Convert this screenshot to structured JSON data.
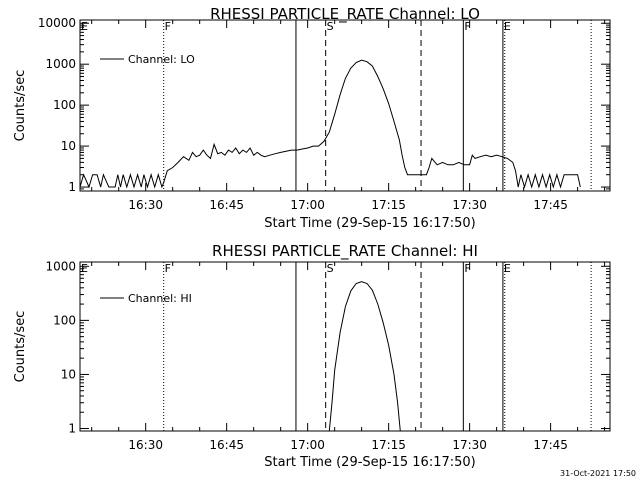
{
  "footer_timestamp": "31-Oct-2021 17:50",
  "chart_data": [
    {
      "type": "line",
      "title": "RHESSI PARTICLE_RATE Channel: LO",
      "xlabel": "Start Time (29-Sep-15 16:17:50)",
      "ylabel": "Counts/sec",
      "yscale": "log",
      "xlim": [
        "16:17:50",
        "17:56:00"
      ],
      "ylim": [
        0.8,
        12000
      ],
      "x_ticks": [
        "16:30",
        "16:45",
        "17:00",
        "17:15",
        "17:30",
        "17:45"
      ],
      "y_ticks": [
        "1",
        "10",
        "100",
        "1000",
        "10000"
      ],
      "legend": "upper-left",
      "grid": false,
      "markers": [
        {
          "time": "16:17:50",
          "style": "dotted",
          "label": "E"
        },
        {
          "time": "16:33:20",
          "style": "dotted",
          "label": "F"
        },
        {
          "time": "16:57:50",
          "style": "solid",
          "label": ""
        },
        {
          "time": "17:03:20",
          "style": "dashed",
          "label": "S"
        },
        {
          "time": "17:21:00",
          "style": "dashed",
          "label": ""
        },
        {
          "time": "17:28:50",
          "style": "solid",
          "label": "F"
        },
        {
          "time": "17:36:10",
          "style": "solid",
          "label": "E"
        },
        {
          "time": "17:36:30",
          "style": "dotted",
          "label": ""
        },
        {
          "time": "17:52:30",
          "style": "dotted",
          "label": ""
        }
      ],
      "series": [
        {
          "name": "Channel: LO",
          "points": [
            [
              "16:17:50",
              1
            ],
            [
              "16:18:30",
              2
            ],
            [
              "16:19:30",
              1
            ],
            [
              "16:20:10",
              2
            ],
            [
              "16:21:00",
              2
            ],
            [
              "16:21:40",
              1
            ],
            [
              "16:22:10",
              2
            ],
            [
              "16:23:10",
              1
            ],
            [
              "16:24:20",
              1
            ],
            [
              "16:24:50",
              2
            ],
            [
              "16:25:20",
              1
            ],
            [
              "16:25:50",
              2
            ],
            [
              "16:26:30",
              1
            ],
            [
              "16:27:10",
              2
            ],
            [
              "16:27:50",
              1
            ],
            [
              "16:28:30",
              2
            ],
            [
              "16:29:10",
              1
            ],
            [
              "16:29:40",
              2
            ],
            [
              "16:30:20",
              1
            ],
            [
              "16:31:00",
              2
            ],
            [
              "16:31:40",
              1
            ],
            [
              "16:32:20",
              2
            ],
            [
              "16:33:00",
              1
            ],
            [
              "16:33:20",
              1.3
            ],
            [
              "16:34:00",
              2.5
            ],
            [
              "16:35:00",
              3
            ],
            [
              "16:36:00",
              4
            ],
            [
              "16:37:00",
              5.5
            ],
            [
              "16:38:00",
              4.5
            ],
            [
              "16:38:40",
              7
            ],
            [
              "16:39:20",
              5.5
            ],
            [
              "16:40:00",
              6
            ],
            [
              "16:40:40",
              8
            ],
            [
              "16:41:20",
              6
            ],
            [
              "16:42:00",
              5
            ],
            [
              "16:42:40",
              11
            ],
            [
              "16:43:20",
              6.5
            ],
            [
              "16:44:00",
              7
            ],
            [
              "16:44:40",
              6
            ],
            [
              "16:45:20",
              8
            ],
            [
              "16:46:00",
              7
            ],
            [
              "16:46:40",
              9
            ],
            [
              "16:47:20",
              6.5
            ],
            [
              "16:48:00",
              8
            ],
            [
              "16:48:40",
              7
            ],
            [
              "16:49:20",
              9
            ],
            [
              "16:50:00",
              6
            ],
            [
              "16:50:40",
              7
            ],
            [
              "16:51:20",
              6
            ],
            [
              "16:52:00",
              5.5
            ],
            [
              "16:53:00",
              6
            ],
            [
              "16:54:00",
              6.5
            ],
            [
              "16:55:00",
              7
            ],
            [
              "16:56:00",
              7.5
            ],
            [
              "16:57:00",
              8
            ],
            [
              "16:58:00",
              8
            ],
            [
              "16:59:00",
              8.5
            ],
            [
              "17:00:00",
              9
            ],
            [
              "17:01:00",
              10
            ],
            [
              "17:02:00",
              10
            ],
            [
              "17:03:00",
              13
            ],
            [
              "17:04:00",
              22
            ],
            [
              "17:05:00",
              60
            ],
            [
              "17:06:00",
              180
            ],
            [
              "17:07:00",
              450
            ],
            [
              "17:08:00",
              800
            ],
            [
              "17:09:00",
              1100
            ],
            [
              "17:10:00",
              1250
            ],
            [
              "17:11:00",
              1150
            ],
            [
              "17:12:00",
              900
            ],
            [
              "17:13:00",
              500
            ],
            [
              "17:14:00",
              250
            ],
            [
              "17:15:00",
              110
            ],
            [
              "17:16:00",
              40
            ],
            [
              "17:17:00",
              14
            ],
            [
              "17:17:30",
              6
            ],
            [
              "17:18:00",
              3
            ],
            [
              "17:18:30",
              2
            ],
            [
              "17:22:00",
              2
            ],
            [
              "17:22:30",
              3
            ],
            [
              "17:23:00",
              5
            ],
            [
              "17:24:00",
              3.5
            ],
            [
              "17:25:00",
              4
            ],
            [
              "17:26:00",
              3.5
            ],
            [
              "17:27:00",
              3.5
            ],
            [
              "17:28:00",
              4
            ],
            [
              "17:29:00",
              3.5
            ],
            [
              "17:30:00",
              3.5
            ],
            [
              "17:30:30",
              6
            ],
            [
              "17:31:00",
              5
            ],
            [
              "17:32:00",
              5.5
            ],
            [
              "17:33:00",
              6
            ],
            [
              "17:34:00",
              5.5
            ],
            [
              "17:35:00",
              6
            ],
            [
              "17:36:00",
              5.5
            ],
            [
              "17:37:00",
              5
            ],
            [
              "17:38:00",
              4
            ],
            [
              "17:38:30",
              2.5
            ],
            [
              "17:39:00",
              1
            ],
            [
              "17:39:30",
              2
            ],
            [
              "17:40:10",
              1
            ],
            [
              "17:40:50",
              2
            ],
            [
              "17:41:30",
              1
            ],
            [
              "17:42:10",
              2
            ],
            [
              "17:42:50",
              1
            ],
            [
              "17:43:30",
              2
            ],
            [
              "17:44:10",
              1
            ],
            [
              "17:44:50",
              2
            ],
            [
              "17:45:30",
              1
            ],
            [
              "17:46:10",
              2
            ],
            [
              "17:46:50",
              1
            ],
            [
              "17:47:30",
              2
            ],
            [
              "17:50:00",
              2
            ],
            [
              "17:50:30",
              1
            ]
          ]
        }
      ]
    },
    {
      "type": "line",
      "title": "RHESSI PARTICLE_RATE Channel: HI",
      "xlabel": "Start Time (29-Sep-15 16:17:50)",
      "ylabel": "Counts/sec",
      "yscale": "log",
      "xlim": [
        "16:17:50",
        "17:56:00"
      ],
      "ylim": [
        0.9,
        1200
      ],
      "x_ticks": [
        "16:30",
        "16:45",
        "17:00",
        "17:15",
        "17:30",
        "17:45"
      ],
      "y_ticks": [
        "1",
        "10",
        "100",
        "1000"
      ],
      "legend": "upper-left",
      "grid": false,
      "markers": [
        {
          "time": "16:17:50",
          "style": "dotted",
          "label": "E"
        },
        {
          "time": "16:33:20",
          "style": "dotted",
          "label": "F"
        },
        {
          "time": "16:57:50",
          "style": "solid",
          "label": ""
        },
        {
          "time": "17:03:20",
          "style": "dashed",
          "label": "S"
        },
        {
          "time": "17:21:00",
          "style": "dashed",
          "label": ""
        },
        {
          "time": "17:28:50",
          "style": "solid",
          "label": "F"
        },
        {
          "time": "17:36:10",
          "style": "solid",
          "label": "E"
        },
        {
          "time": "17:36:30",
          "style": "dotted",
          "label": ""
        },
        {
          "time": "17:52:30",
          "style": "dotted",
          "label": ""
        }
      ],
      "series": [
        {
          "name": "Channel: HI",
          "points": [
            [
              "17:04:00",
              0.9
            ],
            [
              "17:04:30",
              3
            ],
            [
              "17:05:00",
              12
            ],
            [
              "17:06:00",
              60
            ],
            [
              "17:07:00",
              180
            ],
            [
              "17:08:00",
              350
            ],
            [
              "17:09:00",
              480
            ],
            [
              "17:10:00",
              520
            ],
            [
              "17:11:00",
              480
            ],
            [
              "17:12:00",
              360
            ],
            [
              "17:13:00",
              200
            ],
            [
              "17:14:00",
              90
            ],
            [
              "17:15:00",
              35
            ],
            [
              "17:16:00",
              10
            ],
            [
              "17:16:40",
              3
            ],
            [
              "17:17:10",
              0.9
            ]
          ]
        }
      ]
    }
  ]
}
